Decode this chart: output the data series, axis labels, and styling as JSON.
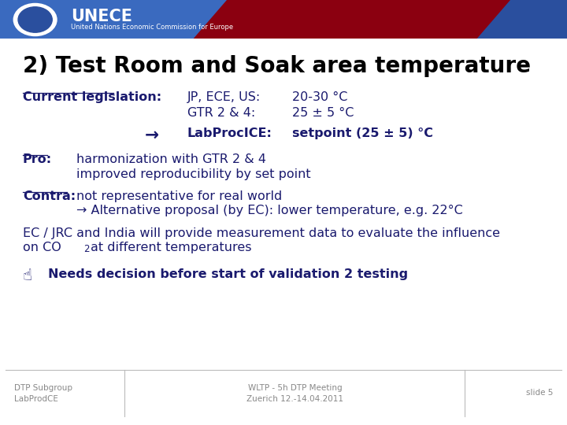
{
  "title": "2) Test Room and Soak area temperature",
  "title_fontsize": 20,
  "body_color": "#1a1a6e",
  "body_fontsize": 11.5,
  "footer_left": "DTP Subgroup\nLabProdCE",
  "footer_center": "WLTP - 5h DTP Meeting\nZuerich 12.-14.04.2011",
  "footer_right": "slide 5",
  "unece_text": "UNECE",
  "unece_subtitle": "United Nations Economic Commission for Europe",
  "current_leg_label": "Current legislation:",
  "jp_label": "JP, ECE, US:",
  "jp_value": "20-30 °C",
  "gtr_label": "GTR 2 & 4:",
  "gtr_value": "25 ± 5 °C",
  "labproc_label": "LabProcICE:",
  "labproc_value": "setpoint (25 ± 5) °C",
  "pro_label": "Pro:",
  "pro_line1": "harmonization with GTR 2 & 4",
  "pro_line2": "improved reproducibility by set point",
  "contra_label": "Contra:",
  "contra_line1": "not representative for real world",
  "contra_line2": "→ Alternative proposal (by EC): lower temperature, e.g. 22°C",
  "ec_line1": "EC / JRC and India will provide measurement data to evaluate the influence",
  "ec_line2_pre": "on CO",
  "ec_line2_sub": "2",
  "ec_line2_post": "at different temperatures",
  "decision_icon": "☝",
  "decision_text": "Needs decision before start of validation 2 testing"
}
